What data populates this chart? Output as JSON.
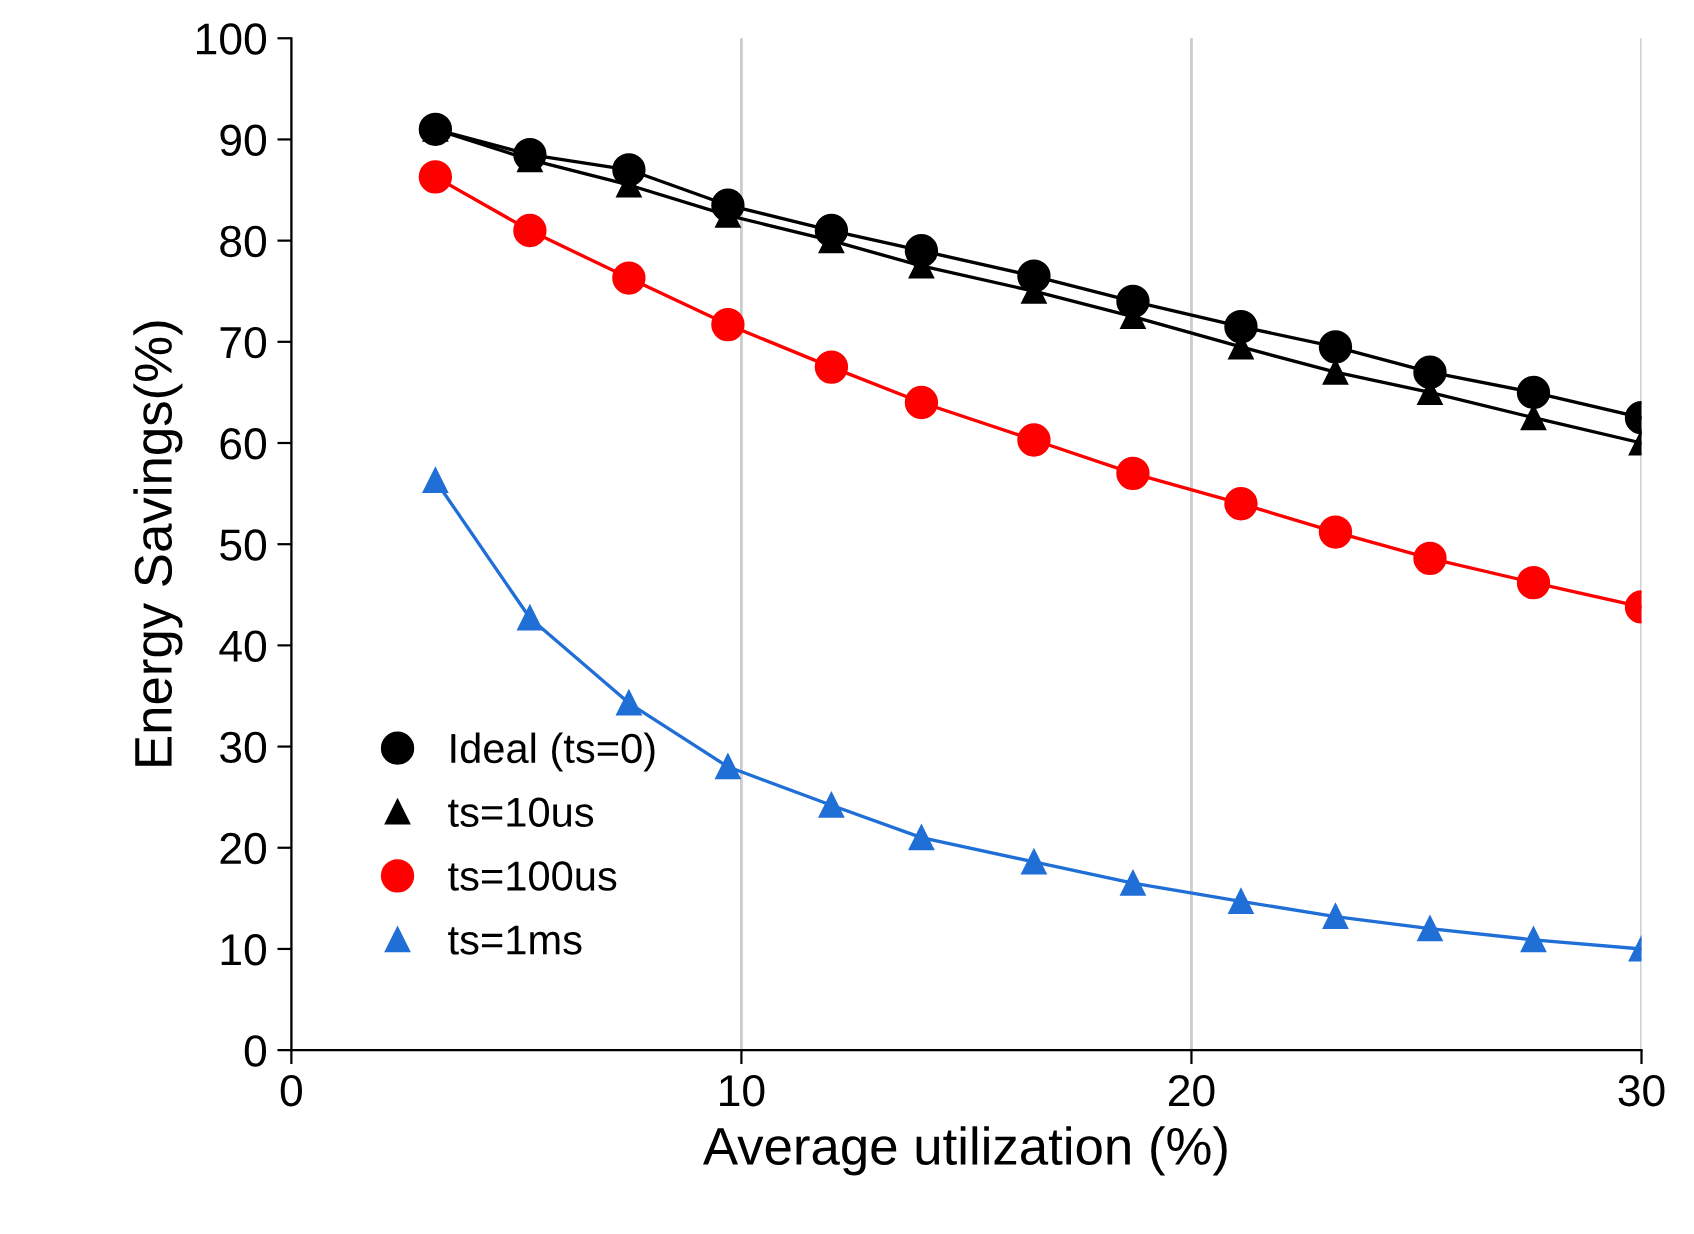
{
  "chart_data": {
    "type": "line",
    "xlabel": "Average utilization (%)",
    "ylabel": "Energy Savings(%)",
    "x": [
      3.2,
      5.3,
      7.5,
      9.7,
      12,
      14,
      16.5,
      18.7,
      21.1,
      23.2,
      25.3,
      27.6,
      30
    ],
    "series": [
      {
        "name": "Ideal (ts=0)",
        "color": "#000000",
        "marker": "circle",
        "values": [
          91,
          88.5,
          87,
          83.5,
          81,
          79,
          76.5,
          74,
          71.5,
          69.5,
          67,
          65,
          62.5
        ]
      },
      {
        "name": "ts=10us",
        "color": "#000000",
        "marker": "triangle",
        "values": [
          91,
          88,
          85.5,
          82.5,
          80,
          77.5,
          75,
          72.5,
          69.5,
          67,
          65,
          62.5,
          60
        ]
      },
      {
        "name": "ts=100us",
        "color": "#ff0000",
        "marker": "circle",
        "values": [
          86.3,
          81,
          76.3,
          71.7,
          67.5,
          64,
          60.3,
          57,
          54,
          51.2,
          48.6,
          46.2,
          43.8
        ]
      },
      {
        "name": "ts=1ms",
        "color": "#1f6fd6",
        "marker": "triangle",
        "values": [
          56.3,
          42.7,
          34.3,
          28,
          24.2,
          21,
          18.6,
          16.5,
          14.7,
          13.2,
          12,
          10.9,
          10
        ]
      }
    ],
    "xlim": [
      0,
      30
    ],
    "xticks": [
      0,
      10,
      20,
      30
    ],
    "ylim": [
      0,
      100
    ],
    "yticks": [
      0,
      10,
      20,
      30,
      40,
      50,
      60,
      70,
      80,
      90,
      100
    ],
    "grid": "x",
    "legend": "left",
    "line_style": "solid"
  }
}
